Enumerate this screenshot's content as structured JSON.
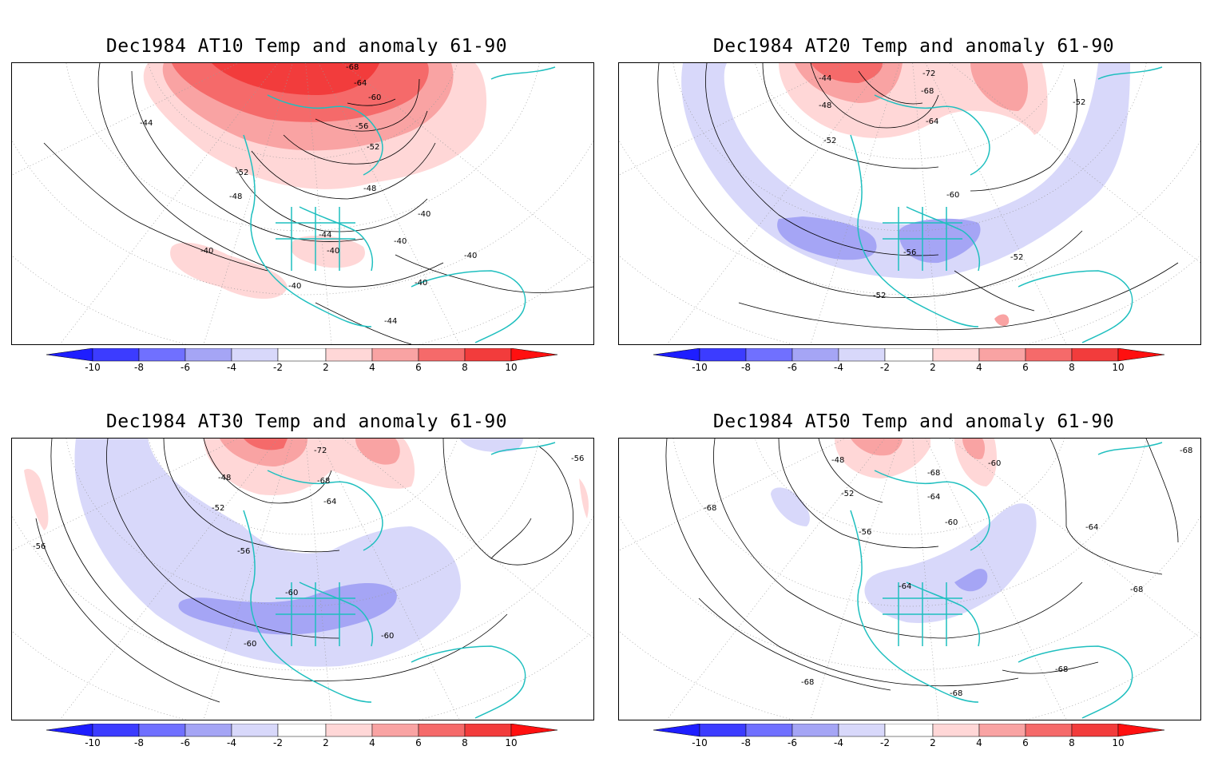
{
  "panels": [
    {
      "title": "Dec1984 AT10 Temp and anomaly 61-90",
      "contour_labels": [
        "-68",
        "-64",
        "-60",
        "-56",
        "-52",
        "-52",
        "-48",
        "-48",
        "-44",
        "-44",
        "-40",
        "-40",
        "-40",
        "-40",
        "-40",
        "-40",
        "-40",
        "-44"
      ]
    },
    {
      "title": "Dec1984 AT20 Temp and anomaly 61-90",
      "contour_labels": [
        "-44",
        "-72",
        "-68",
        "-48",
        "-64",
        "-52",
        "-52",
        "-60",
        "-56",
        "-52",
        "-52"
      ]
    },
    {
      "title": "Dec1984 AT30 Temp and anomaly 61-90",
      "contour_labels": [
        "-72",
        "-48",
        "-68",
        "-52",
        "-64",
        "-56",
        "-56",
        "-60",
        "-60",
        "-60",
        "-56"
      ]
    },
    {
      "title": "Dec1984 AT50 Temp and anomaly 61-90",
      "contour_labels": [
        "-48",
        "-68",
        "-60",
        "-52",
        "-64",
        "-68",
        "-60",
        "-56",
        "-64",
        "-64",
        "-68",
        "-68",
        "-68",
        "-68",
        "-68"
      ]
    }
  ],
  "colorbar": {
    "labels": [
      "-10",
      "-8",
      "-6",
      "-4",
      "-2",
      "2",
      "4",
      "6",
      "8",
      "10"
    ],
    "colors": [
      "#1e1eff",
      "#3c3cff",
      "#7070ff",
      "#a5a5f5",
      "#d8d8fa",
      "#ffffff",
      "#ffd7d7",
      "#f9a3a3",
      "#f56a6a",
      "#f23c3c",
      "#ff1010"
    ]
  },
  "legend_meaning": {
    "shading": "temperature anomaly",
    "contours": "temperature"
  }
}
